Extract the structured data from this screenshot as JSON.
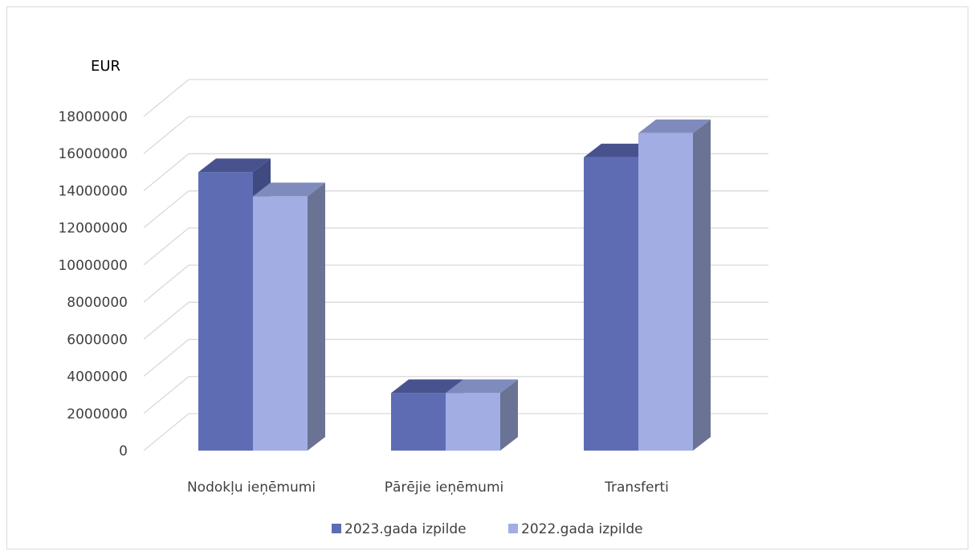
{
  "chart_data": {
    "type": "bar",
    "title": "",
    "ylabel": "EUR",
    "xlabel": "",
    "categories": [
      "Nodokļu ieņēmumi",
      "Pārējie ieņēmumi",
      "Transferti"
    ],
    "series": [
      {
        "name": "2023.gada izpilde",
        "values": [
          15000000,
          3100000,
          15800000
        ],
        "color": "#5e6db3"
      },
      {
        "name": "2022.gada izpilde",
        "values": [
          13700000,
          3100000,
          17100000
        ],
        "color": "#a1ade3"
      }
    ],
    "yticks": [
      0,
      2000000,
      4000000,
      6000000,
      8000000,
      10000000,
      12000000,
      14000000,
      16000000,
      18000000
    ],
    "ylim": [
      0,
      18000000
    ],
    "grid": true,
    "legend_position": "bottom",
    "style": "3d-column"
  }
}
